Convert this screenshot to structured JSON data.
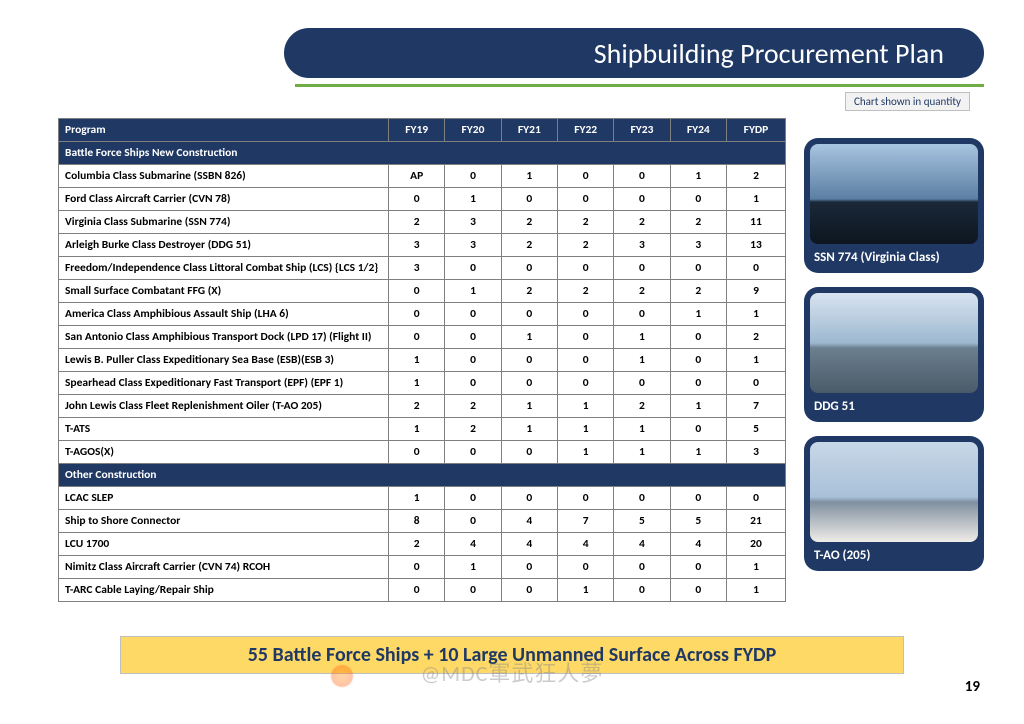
{
  "title": "Shipbuilding Procurement Plan",
  "chart_note": "Chart shown in quantity",
  "columns": [
    "Program",
    "FY19",
    "FY20",
    "FY21",
    "FY22",
    "FY23",
    "FY24",
    "FYDP"
  ],
  "section1": "Battle Force Ships New Construction",
  "section2": "Other Construction",
  "rows1": [
    {
      "p": "Columbia Class Submarine (SSBN 826)",
      "v": [
        "AP",
        "0",
        "1",
        "0",
        "0",
        "1",
        "2"
      ]
    },
    {
      "p": "Ford Class Aircraft Carrier (CVN 78)",
      "v": [
        "0",
        "1",
        "0",
        "0",
        "0",
        "0",
        "1"
      ]
    },
    {
      "p": "Virginia Class Submarine (SSN 774)",
      "v": [
        "2",
        "3",
        "2",
        "2",
        "2",
        "2",
        "11"
      ]
    },
    {
      "p": "Arleigh Burke Class Destroyer (DDG 51)",
      "v": [
        "3",
        "3",
        "2",
        "2",
        "3",
        "3",
        "13"
      ]
    },
    {
      "p": "Freedom/Independence Class Littoral Combat Ship (LCS) {LCS 1/2}",
      "v": [
        "3",
        "0",
        "0",
        "0",
        "0",
        "0",
        "0"
      ]
    },
    {
      "p": "Small Surface Combatant FFG (X)",
      "v": [
        "0",
        "1",
        "2",
        "2",
        "2",
        "2",
        "9"
      ]
    },
    {
      "p": "America Class Amphibious Assault Ship (LHA 6)",
      "v": [
        "0",
        "0",
        "0",
        "0",
        "0",
        "1",
        "1"
      ]
    },
    {
      "p": "San Antonio Class Amphibious Transport Dock (LPD 17) (Flight II)",
      "v": [
        "0",
        "0",
        "1",
        "0",
        "1",
        "0",
        "2"
      ]
    },
    {
      "p": "Lewis B. Puller Class Expeditionary Sea Base (ESB)(ESB 3)",
      "v": [
        "1",
        "0",
        "0",
        "0",
        "1",
        "0",
        "1"
      ]
    },
    {
      "p": "Spearhead Class Expeditionary Fast Transport (EPF) (EPF 1)",
      "v": [
        "1",
        "0",
        "0",
        "0",
        "0",
        "0",
        "0"
      ]
    },
    {
      "p": "John Lewis Class Fleet Replenishment Oiler (T-AO 205)",
      "v": [
        "2",
        "2",
        "1",
        "1",
        "2",
        "1",
        "7"
      ]
    },
    {
      "p": "T-ATS",
      "v": [
        "1",
        "2",
        "1",
        "1",
        "1",
        "0",
        "5"
      ]
    },
    {
      "p": "T-AGOS(X)",
      "v": [
        "0",
        "0",
        "0",
        "1",
        "1",
        "1",
        "3"
      ]
    }
  ],
  "rows2": [
    {
      "p": "LCAC SLEP",
      "v": [
        "1",
        "0",
        "0",
        "0",
        "0",
        "0",
        "0"
      ]
    },
    {
      "p": "Ship to Shore Connector",
      "v": [
        "8",
        "0",
        "4",
        "7",
        "5",
        "5",
        "21"
      ]
    },
    {
      "p": "LCU 1700",
      "v": [
        "2",
        "4",
        "4",
        "4",
        "4",
        "4",
        "20"
      ]
    },
    {
      "p": "Nimitz Class Aircraft Carrier (CVN 74) RCOH",
      "v": [
        "0",
        "1",
        "0",
        "0",
        "0",
        "0",
        "1"
      ]
    },
    {
      "p": "T-ARC Cable Laying/Repair Ship",
      "v": [
        "0",
        "0",
        "0",
        "1",
        "0",
        "0",
        "1"
      ]
    }
  ],
  "sidebar": [
    {
      "label": "SSN 774 (Virginia Class)"
    },
    {
      "label": "DDG 51"
    },
    {
      "label": "T-AO (205)"
    }
  ],
  "summary": "55 Battle Force Ships + 10 Large Unmanned Surface Across FYDP",
  "page": "19",
  "watermark": "@MDC軍武狂人夢",
  "colors": {
    "navy": "#1f3864",
    "green": "#70ad47",
    "yellow": "#ffd966",
    "border": "#7f7f7f"
  }
}
